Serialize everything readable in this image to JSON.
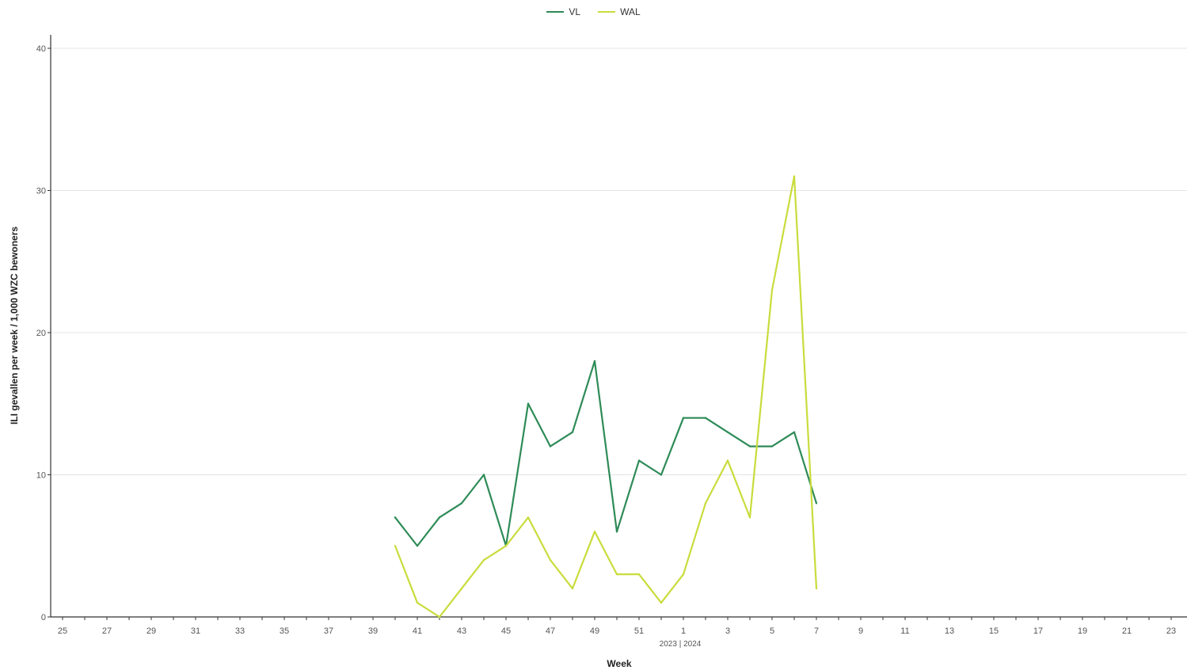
{
  "chart_data": {
    "type": "line",
    "xlabel": "Week",
    "ylabel": "ILI gevallen per week / 1,000 WZC bewoners",
    "season_label": "2023 | 2024",
    "ylim": [
      0,
      40
    ],
    "y_ticks": [
      "0",
      "10",
      "20",
      "30",
      "40"
    ],
    "x_ticks": [
      "25",
      "27",
      "29",
      "31",
      "33",
      "35",
      "37",
      "39",
      "41",
      "43",
      "45",
      "47",
      "49",
      "51",
      "1",
      "3",
      "5",
      "7",
      "9",
      "11",
      "13",
      "15",
      "17",
      "19",
      "21",
      "23"
    ],
    "x_all_weeks": [
      "25",
      "26",
      "27",
      "28",
      "29",
      "30",
      "31",
      "32",
      "33",
      "34",
      "35",
      "36",
      "37",
      "38",
      "39",
      "40",
      "41",
      "42",
      "43",
      "44",
      "45",
      "46",
      "47",
      "48",
      "49",
      "50",
      "51",
      "52",
      "1",
      "2",
      "3",
      "4",
      "5",
      "6",
      "7",
      "8",
      "9",
      "10",
      "11",
      "12",
      "13",
      "14",
      "15",
      "16",
      "17",
      "18",
      "19",
      "20",
      "21",
      "22",
      "23",
      "24"
    ],
    "legend_position": "top-center",
    "grid": "horizontal",
    "series": [
      {
        "name": "VL",
        "color": "#2e8b57",
        "x": [
          "40",
          "41",
          "42",
          "43",
          "44",
          "45",
          "46",
          "47",
          "48",
          "49",
          "50",
          "51",
          "52",
          "1",
          "2",
          "3",
          "4",
          "5",
          "6",
          "7"
        ],
        "values": [
          7,
          5,
          7,
          8,
          10,
          5,
          15,
          12,
          13,
          18,
          6,
          11,
          10,
          14,
          14,
          13,
          12,
          12,
          13,
          8
        ]
      },
      {
        "name": "WAL",
        "color": "#c9dc3c",
        "x": [
          "40",
          "41",
          "42",
          "43",
          "44",
          "45",
          "46",
          "47",
          "48",
          "49",
          "50",
          "51",
          "52",
          "1",
          "2",
          "3",
          "4",
          "5",
          "6",
          "7"
        ],
        "values": [
          5,
          1,
          0,
          2,
          4,
          5,
          7,
          4,
          2,
          6,
          3,
          3,
          1,
          3,
          8,
          11,
          7,
          23,
          31,
          2
        ]
      }
    ]
  }
}
